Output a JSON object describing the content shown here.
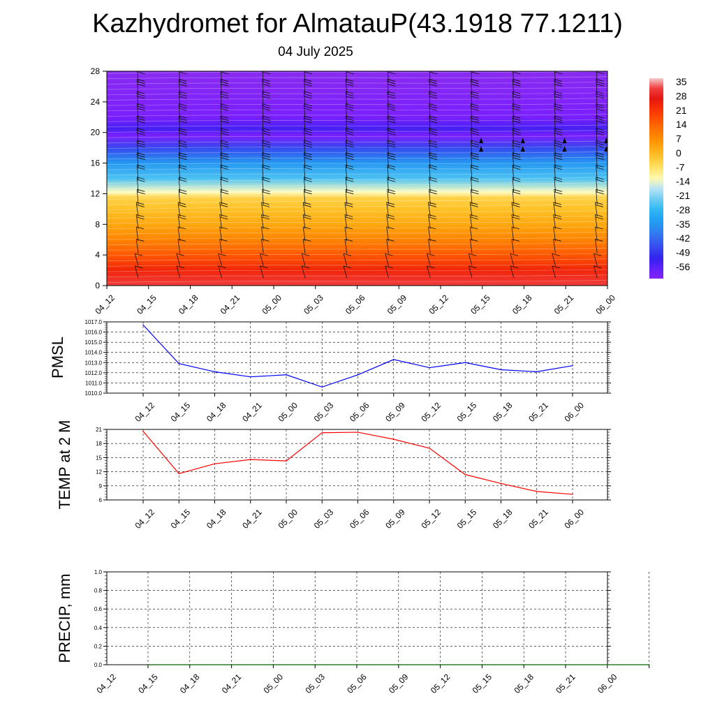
{
  "header": {
    "title": "Kazhydromet for AlmatauP(43.1918 77.1211)",
    "date": "04 July 2025"
  },
  "colors": {
    "pmsl_line": "#0000ff",
    "temp_line": "#ff0000",
    "precip_line": "#006400",
    "grid": "#000000"
  },
  "chart_data": [
    {
      "type": "heatmap",
      "name": "vertical-cross-section",
      "x_tick_labels": [
        "04_12",
        "04_15",
        "04_18",
        "04_21",
        "05_00",
        "05_03",
        "05_06",
        "05_09",
        "05_12",
        "05_15",
        "05_18",
        "05_21",
        "06_00"
      ],
      "y_ticks": [
        0,
        4,
        8,
        12,
        16,
        20,
        24,
        28
      ],
      "ylim": [
        0,
        28
      ],
      "colorbar": {
        "labels": [
          "35",
          "28",
          "21",
          "14",
          "7",
          "0",
          "-7",
          "-14",
          "-21",
          "-28",
          "-35",
          "-42",
          "-49",
          "-56"
        ],
        "range": [
          -60,
          38
        ]
      },
      "temperature_profile_height_vs_value": [
        [
          0,
          33
        ],
        [
          2,
          25
        ],
        [
          4,
          17
        ],
        [
          6,
          10
        ],
        [
          8,
          4
        ],
        [
          10,
          0
        ],
        [
          11.5,
          -3
        ],
        [
          12.2,
          -12
        ],
        [
          14,
          -24
        ],
        [
          16,
          -33
        ],
        [
          18,
          -45
        ],
        [
          19.6,
          -58
        ],
        [
          20.5,
          -52
        ],
        [
          22,
          -58
        ],
        [
          28,
          -62
        ]
      ],
      "wind_barbs": "present at every column",
      "legend": "colorbar right"
    },
    {
      "type": "line",
      "name": "PMSL",
      "ylabel": "PMSL",
      "categories": [
        "04_12",
        "04_15",
        "04_18",
        "04_21",
        "05_00",
        "05_03",
        "05_06",
        "05_09",
        "05_12",
        "05_15",
        "05_18",
        "05_21",
        "06_00"
      ],
      "values": [
        1016.7,
        1012.9,
        1012.1,
        1011.6,
        1011.8,
        1010.6,
        1011.8,
        1013.3,
        1012.5,
        1013.0,
        1012.3,
        1012.1,
        1012.7
      ],
      "ylim": [
        1010.0,
        1017.0
      ],
      "y_ticks": [
        "1010.0",
        "1011.0",
        "1012.0",
        "1013.0",
        "1014.0",
        "1015.0",
        "1016.0",
        "1017.0"
      ],
      "grid": true
    },
    {
      "type": "line",
      "name": "TEMP at 2 M",
      "ylabel": "TEMP at 2 M",
      "categories": [
        "04_12",
        "04_15",
        "04_18",
        "04_21",
        "05_00",
        "05_03",
        "05_06",
        "05_09",
        "05_12",
        "05_15",
        "05_18",
        "05_21",
        "06_00"
      ],
      "values": [
        20.6,
        11.6,
        13.7,
        14.6,
        14.3,
        20.3,
        20.4,
        18.9,
        17.0,
        11.4,
        9.5,
        7.8,
        7.2
      ],
      "ylim": [
        6,
        21
      ],
      "y_ticks": [
        "6",
        "9",
        "12",
        "15",
        "18",
        "21"
      ],
      "grid": true
    },
    {
      "type": "line",
      "name": "PRECIP, mm",
      "ylabel": "PRECIP, mm",
      "categories": [
        "04_12",
        "04_15",
        "04_18",
        "04_21",
        "05_00",
        "05_03",
        "05_06",
        "05_09",
        "05_12",
        "05_15",
        "05_18",
        "05_21",
        "06_00"
      ],
      "values": [
        0,
        0,
        0,
        0,
        0,
        0,
        0,
        0,
        0,
        0,
        0,
        0,
        0
      ],
      "ylim": [
        0.0,
        1.0
      ],
      "y_ticks": [
        "0.0",
        "0.2",
        "0.4",
        "0.6",
        "0.8",
        "1.0"
      ],
      "grid": true
    }
  ]
}
